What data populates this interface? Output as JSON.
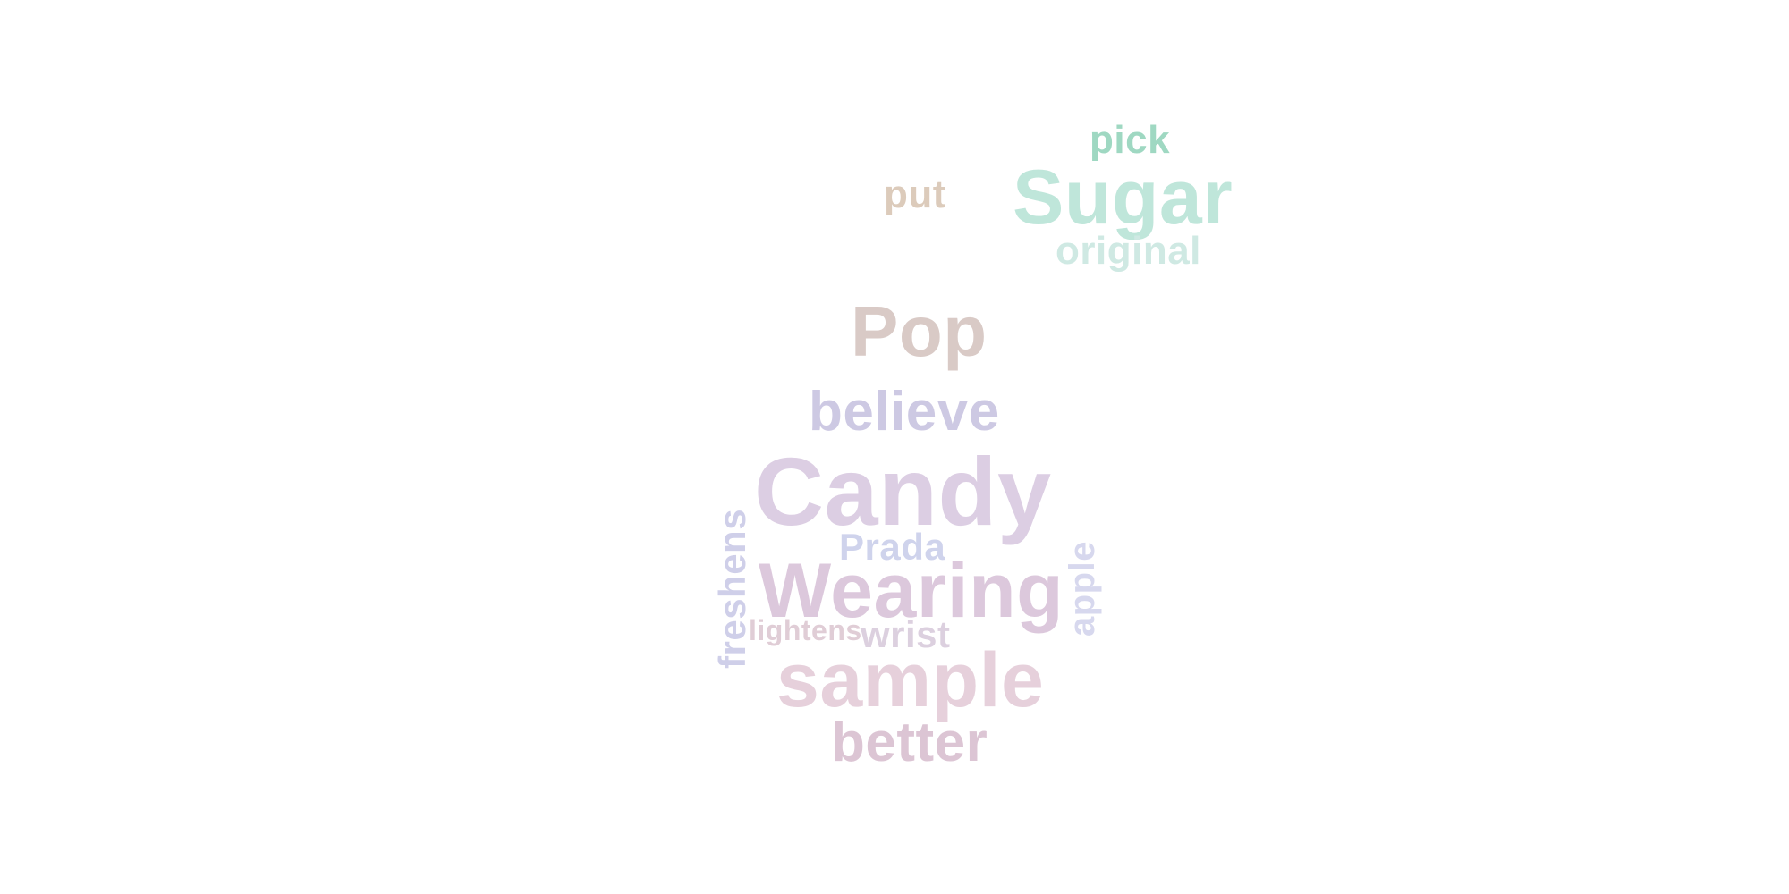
{
  "words": [
    {
      "text": "pick",
      "color": "#9fd8c2"
    },
    {
      "text": "Sugar",
      "color": "#bfe6da"
    },
    {
      "text": "put",
      "color": "#dccbbb"
    },
    {
      "text": "original",
      "color": "#cfe9e3"
    },
    {
      "text": "Pop",
      "color": "#d9cac6"
    },
    {
      "text": "believe",
      "color": "#cdc9e3"
    },
    {
      "text": "Candy",
      "color": "#dccee3"
    },
    {
      "text": "Prada",
      "color": "#cfd3ec"
    },
    {
      "text": "Wearing",
      "color": "#dcc8dc"
    },
    {
      "text": "lightens",
      "color": "#e0cdd6"
    },
    {
      "text": "wrist",
      "color": "#dcd0df"
    },
    {
      "text": "sample",
      "color": "#e6d0db"
    },
    {
      "text": "better",
      "color": "#dcc5d4"
    },
    {
      "text": "freshens",
      "color": "#cfcfe9"
    },
    {
      "text": "apple",
      "color": "#d7d8ee"
    }
  ]
}
